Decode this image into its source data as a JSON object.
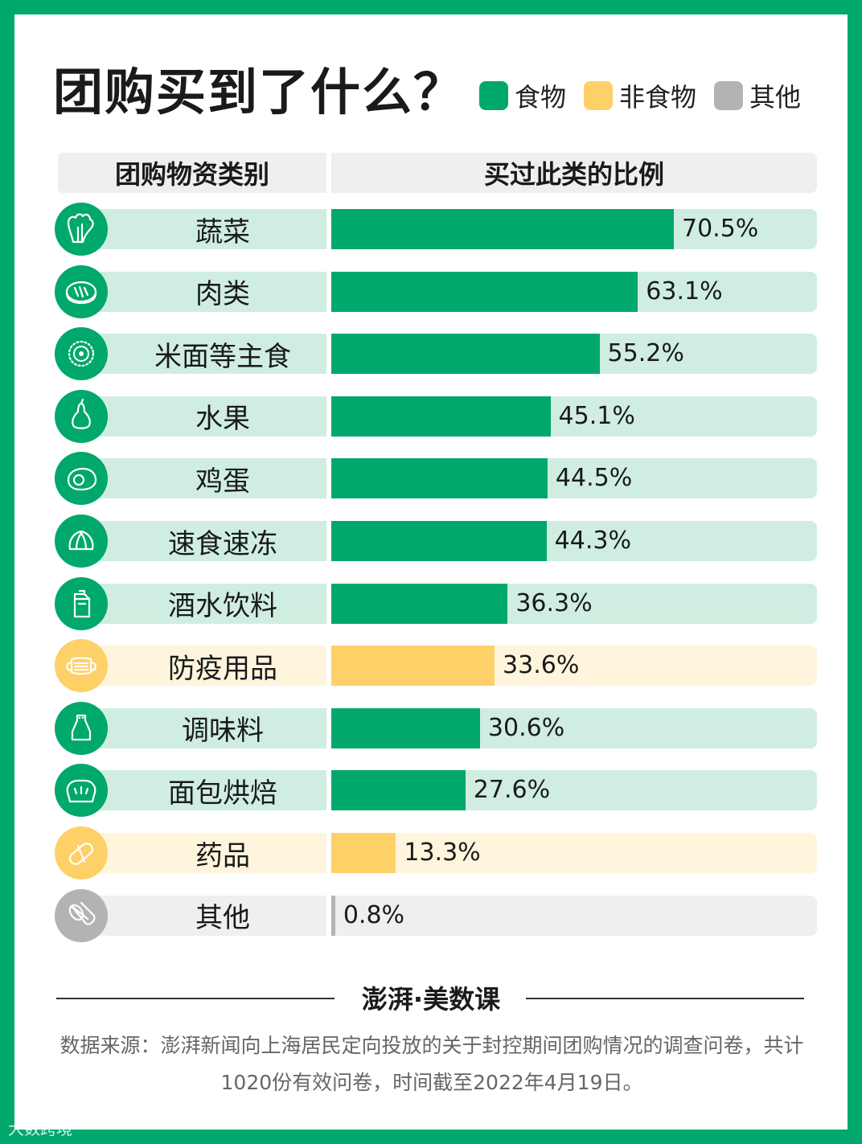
{
  "title": "团购买到了什么？",
  "legend": [
    {
      "label": "食物",
      "color": "#00a86b"
    },
    {
      "label": "非食物",
      "color": "#fdd068"
    },
    {
      "label": "其他",
      "color": "#b3b3b3"
    }
  ],
  "header": {
    "category": "团购物资类别",
    "ratio": "买过此类的比例"
  },
  "chart_data": {
    "type": "bar",
    "orientation": "horizontal",
    "title": "团购买到了什么？",
    "categories": [
      "蔬菜",
      "肉类",
      "米面等主食",
      "水果",
      "鸡蛋",
      "速食速冻",
      "酒水饮料",
      "防疫用品",
      "调味料",
      "面包烘焙",
      "药品",
      "其他"
    ],
    "values": [
      70.5,
      63.1,
      55.2,
      45.1,
      44.5,
      44.3,
      36.3,
      33.6,
      30.6,
      27.6,
      13.3,
      0.8
    ],
    "value_labels": [
      "70.5%",
      "63.1%",
      "55.2%",
      "45.1%",
      "44.5%",
      "44.3%",
      "36.3%",
      "33.6%",
      "30.6%",
      "27.6%",
      "13.3%",
      "0.8%"
    ],
    "groups": [
      "食物",
      "食物",
      "食物",
      "食物",
      "食物",
      "食物",
      "食物",
      "非食物",
      "食物",
      "食物",
      "非食物",
      "其他"
    ],
    "icons": [
      "vegetable-icon",
      "meat-icon",
      "grain-icon",
      "pear-icon",
      "egg-icon",
      "dumpling-icon",
      "drink-carton-icon",
      "mask-icon",
      "seasoning-bottle-icon",
      "bread-icon",
      "pill-icon",
      "tissue-roll-icon"
    ],
    "xlim": [
      0,
      100
    ],
    "grid": false,
    "legend_position": "top-right"
  },
  "colors": {
    "食物": {
      "bar": "#00a86b",
      "track": "#cfeee1",
      "icon": "#00a86b"
    },
    "非食物": {
      "bar": "#fdd068",
      "track": "#fff5dc",
      "icon": "#fdd068"
    },
    "其他": {
      "bar": "#b3b3b3",
      "track": "#efefef",
      "icon": "#b3b3b3"
    }
  },
  "footer": {
    "brand": "澎湃·美数课",
    "source": "数据来源：澎湃新闻向上海居民定向投放的关于封控期间团购情况的调查问卷，共计1020份有效问卷，时间截至2022年4月19日。",
    "watermark": "大数跨境"
  }
}
